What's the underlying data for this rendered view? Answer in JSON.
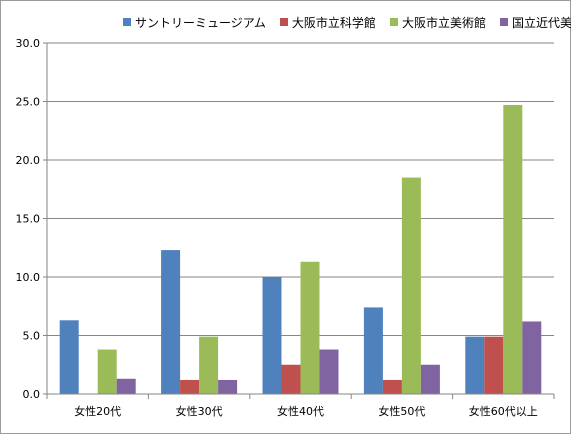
{
  "chart_data": {
    "type": "bar",
    "categories": [
      "女性20代",
      "女性30代",
      "女性40代",
      "女性50代",
      "女性60代以上"
    ],
    "series": [
      {
        "name": "サントリーミュージアム",
        "color": "#4f81bd",
        "values": [
          6.3,
          12.3,
          10.0,
          7.4,
          4.9
        ]
      },
      {
        "name": "大阪市立科学館",
        "color": "#c0504d",
        "values": [
          0,
          1.2,
          2.5,
          1.2,
          4.9
        ]
      },
      {
        "name": "大阪市立美術館",
        "color": "#9bbb59",
        "values": [
          3.8,
          4.9,
          11.3,
          18.5,
          24.7
        ]
      },
      {
        "name": "国立近代美術館",
        "color": "#8064a2",
        "values": [
          1.3,
          1.2,
          3.8,
          2.5,
          6.2
        ]
      }
    ],
    "yticks": [
      "0.0",
      "5.0",
      "10.0",
      "15.0",
      "20.0",
      "25.0",
      "30.0"
    ],
    "ylim": [
      0,
      30
    ],
    "grid": true,
    "legend": "top"
  }
}
